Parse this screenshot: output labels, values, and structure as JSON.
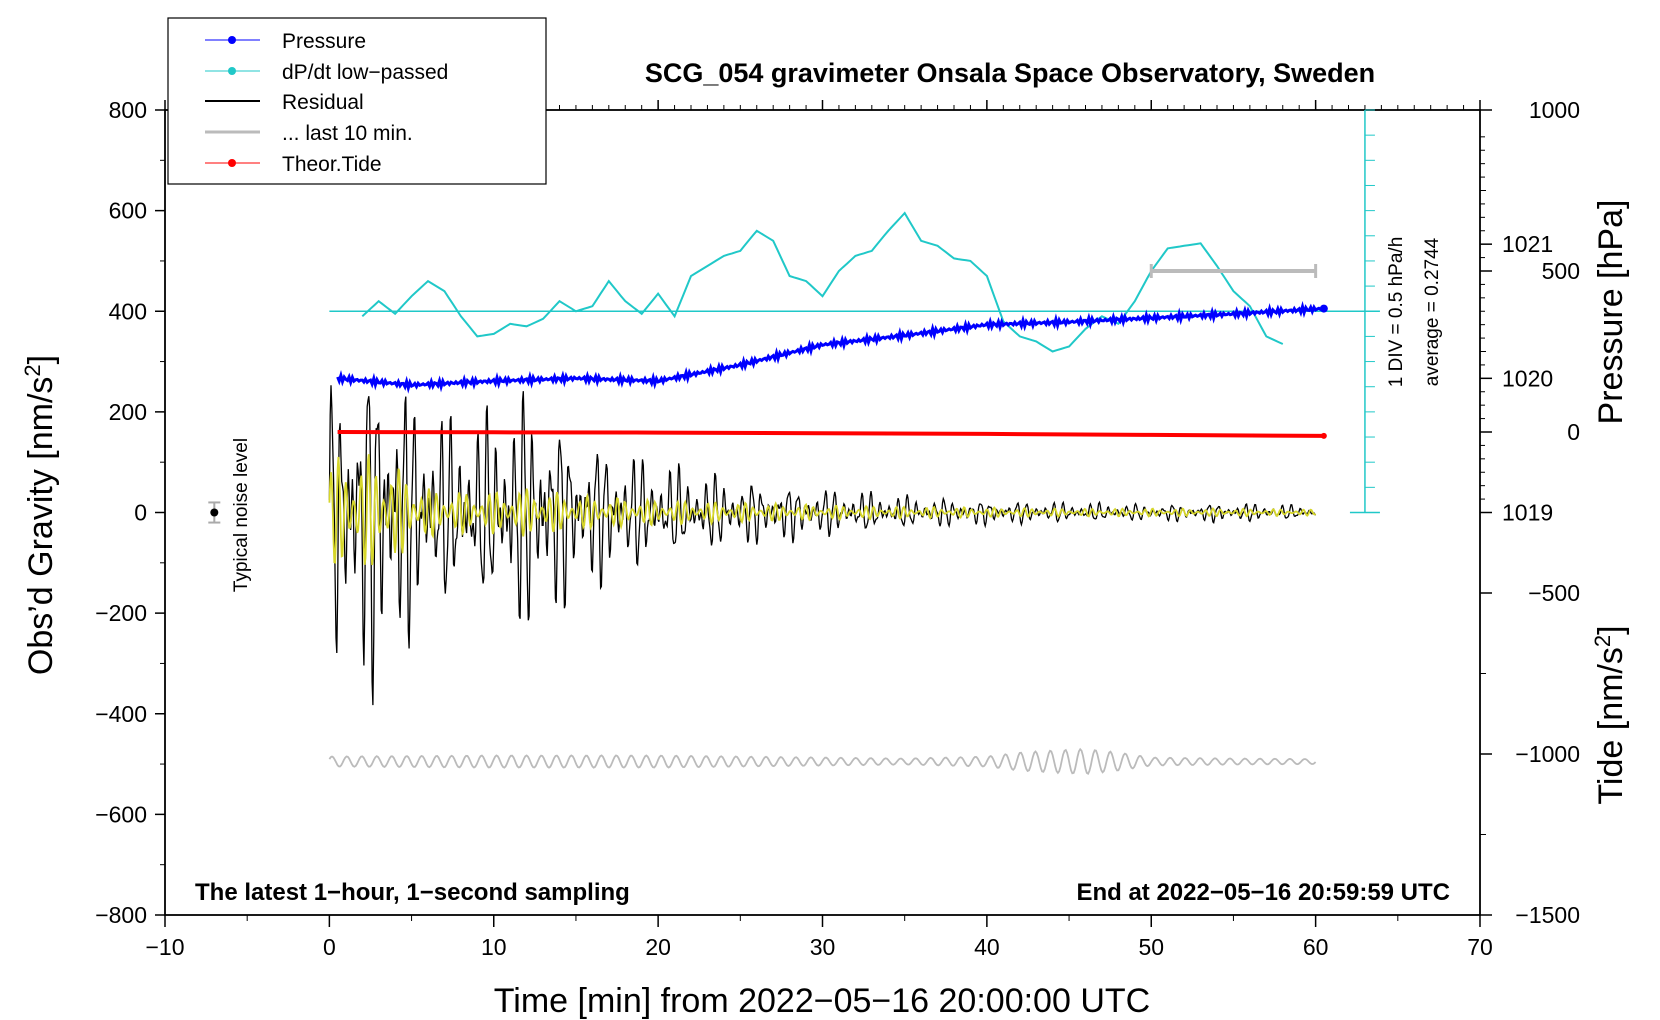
{
  "chart_data": {
    "type": "line",
    "title": "SCG_054 gravimeter Onsala Space Observatory, Sweden",
    "xlabel": "Time [min] from 2022−05−16 20:00:00 UTC",
    "ylabel": "Obs’d Gravity [nm/s",
    "ylabel_sup": "2",
    "ylabel_end": "]",
    "y2label": "Pressure [hPa]",
    "y3label": "Tide [nm/s",
    "y3label_sup": "2",
    "y3label_end": "]",
    "xlim": [
      -10,
      70
    ],
    "ylim": [
      -800,
      800
    ],
    "pressure_lim": [
      1016,
      1022
    ],
    "tide_lim": [
      -1500,
      1000
    ],
    "x_ticks": [
      -10,
      0,
      10,
      20,
      30,
      40,
      50,
      60,
      70
    ],
    "x_tick_labels": [
      "−10",
      "0",
      "10",
      "20",
      "30",
      "40",
      "50",
      "60",
      "70"
    ],
    "y_ticks": [
      800,
      600,
      400,
      200,
      0,
      -200,
      -400,
      -600,
      -800
    ],
    "y_tick_labels": [
      "800",
      "600",
      "400",
      "200",
      "0",
      "−200",
      "−400",
      "−600",
      "−800"
    ],
    "pressure_ticks": [
      1021,
      1020,
      1019
    ],
    "pressure_tick_labels": [
      "1021",
      "1020",
      "1019"
    ],
    "tide_ticks": [
      1000,
      500,
      0,
      -500,
      -1000,
      -1500
    ],
    "tide_tick_labels": [
      "1000",
      "500",
      "0",
      "−500",
      "−1000",
      "−1500"
    ],
    "legend": {
      "position": "top-left",
      "entries": [
        {
          "label": "Pressure",
          "color": "#0000ff",
          "marker": "dot"
        },
        {
          "label": "dP/dt low−passed",
          "color": "#20c8c8",
          "marker": "dot"
        },
        {
          "label": "Residual",
          "color": "#000000",
          "marker": "none"
        },
        {
          "label": "... last 10 min.",
          "color": "#bbbbbb",
          "marker": "none"
        },
        {
          "label": "Theor.Tide",
          "color": "#ff0000",
          "marker": "dot"
        }
      ]
    },
    "annotations": {
      "bottom_left": "The latest 1−hour, 1−second sampling",
      "bottom_right": "End at 2022−05−16 20:59:59 UTC",
      "noise_label": "Typical noise level",
      "div_label": "1 DIV = 0.5 hPa/h",
      "average_label": "average = 0.2744"
    },
    "noise_marker": {
      "x": -7,
      "y": 0,
      "err": 20
    },
    "series": [
      {
        "name": "Pressure",
        "color": "#0000ff",
        "axis": "pressure",
        "x": [
          0.5,
          5,
          10,
          15,
          20,
          25,
          30,
          35,
          40,
          45,
          50,
          55,
          60.5
        ],
        "values": [
          1020.0,
          1019.95,
          1019.98,
          1020.0,
          1019.98,
          1020.1,
          1020.25,
          1020.32,
          1020.4,
          1020.42,
          1020.45,
          1020.48,
          1020.52
        ]
      },
      {
        "name": "dP/dt low-passed",
        "color": "#20c8c8",
        "axis": "gravity",
        "baseline": 400,
        "x": [
          2,
          3,
          4,
          5,
          6,
          7,
          8,
          9,
          10,
          11,
          12,
          13,
          14,
          15,
          16,
          17,
          18,
          19,
          20,
          21,
          22,
          23,
          24,
          25,
          26,
          27,
          28,
          29,
          30,
          31,
          32,
          33,
          34,
          35,
          36,
          37,
          38,
          39,
          40,
          41,
          42,
          43,
          44,
          45,
          46,
          47,
          48,
          49,
          50,
          51,
          52,
          53,
          54,
          55,
          56,
          57,
          58
        ],
        "values": [
          390,
          420,
          395,
          430,
          460,
          440,
          390,
          350,
          355,
          375,
          370,
          385,
          420,
          400,
          410,
          460,
          420,
          395,
          435,
          390,
          470,
          490,
          510,
          520,
          560,
          540,
          470,
          460,
          430,
          480,
          510,
          520,
          560,
          595,
          540,
          530,
          505,
          500,
          470,
          380,
          350,
          340,
          320,
          330,
          365,
          390,
          375,
          420,
          480,
          525,
          530,
          535,
          490,
          440,
          410,
          350,
          335
        ]
      },
      {
        "name": "Residual",
        "color": "#000000",
        "axis": "gravity",
        "envelope_x": [
          0,
          3,
          6,
          9,
          12,
          15,
          20,
          25,
          30,
          35,
          40,
          45,
          50,
          55,
          60
        ],
        "envelope": [
          250,
          330,
          180,
          170,
          230,
          150,
          90,
          60,
          45,
          30,
          22,
          18,
          15,
          18,
          12
        ]
      },
      {
        "name": "Residual (yellow)",
        "color": "#d6d62a",
        "axis": "gravity",
        "envelope_x": [
          0,
          3,
          6,
          9,
          12,
          15,
          20,
          25,
          30,
          35,
          40,
          45,
          50,
          55,
          60
        ],
        "envelope": [
          110,
          120,
          50,
          40,
          50,
          35,
          25,
          20,
          15,
          12,
          10,
          8,
          8,
          8,
          6
        ]
      },
      {
        "name": "Theor.Tide",
        "color": "#ff0000",
        "axis": "tide",
        "x": [
          0.5,
          10,
          20,
          30,
          40,
          50,
          60.5
        ],
        "values": [
          0,
          -1,
          -2,
          -4,
          -6,
          -9,
          -12
        ]
      },
      {
        "name": "... last 10 min.",
        "color": "#bbbbbb",
        "axis": "gravity",
        "baseline": -495,
        "envelope_x": [
          0,
          10,
          20,
          30,
          35,
          40,
          42,
          44,
          46,
          48,
          50,
          55,
          60
        ],
        "envelope": [
          10,
          12,
          12,
          8,
          6,
          10,
          18,
          22,
          25,
          18,
          8,
          6,
          5
        ]
      }
    ],
    "last_10_min_bar": {
      "x_start": 50,
      "x_end": 60,
      "tide_value": 500
    }
  }
}
